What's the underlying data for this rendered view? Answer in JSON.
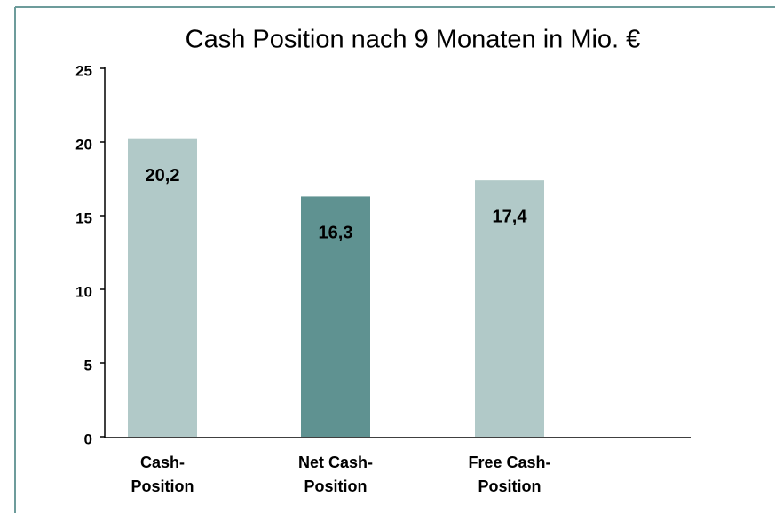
{
  "chart_data": {
    "type": "bar",
    "title": "Cash Position nach 9 Monaten in Mio. €",
    "categories": [
      "Cash-\nPosition",
      "Net Cash-\nPosition",
      "Free Cash-\nPosition"
    ],
    "values": [
      20.2,
      16.3,
      17.4
    ],
    "value_labels": [
      "20,2",
      "16,3",
      "17,4"
    ],
    "colors": [
      "#b1c9c8",
      "#5f9291",
      "#b1c9c8"
    ],
    "ylim": [
      0,
      25
    ],
    "yticks": [
      0,
      5,
      10,
      15,
      20,
      25
    ],
    "grid": false
  }
}
